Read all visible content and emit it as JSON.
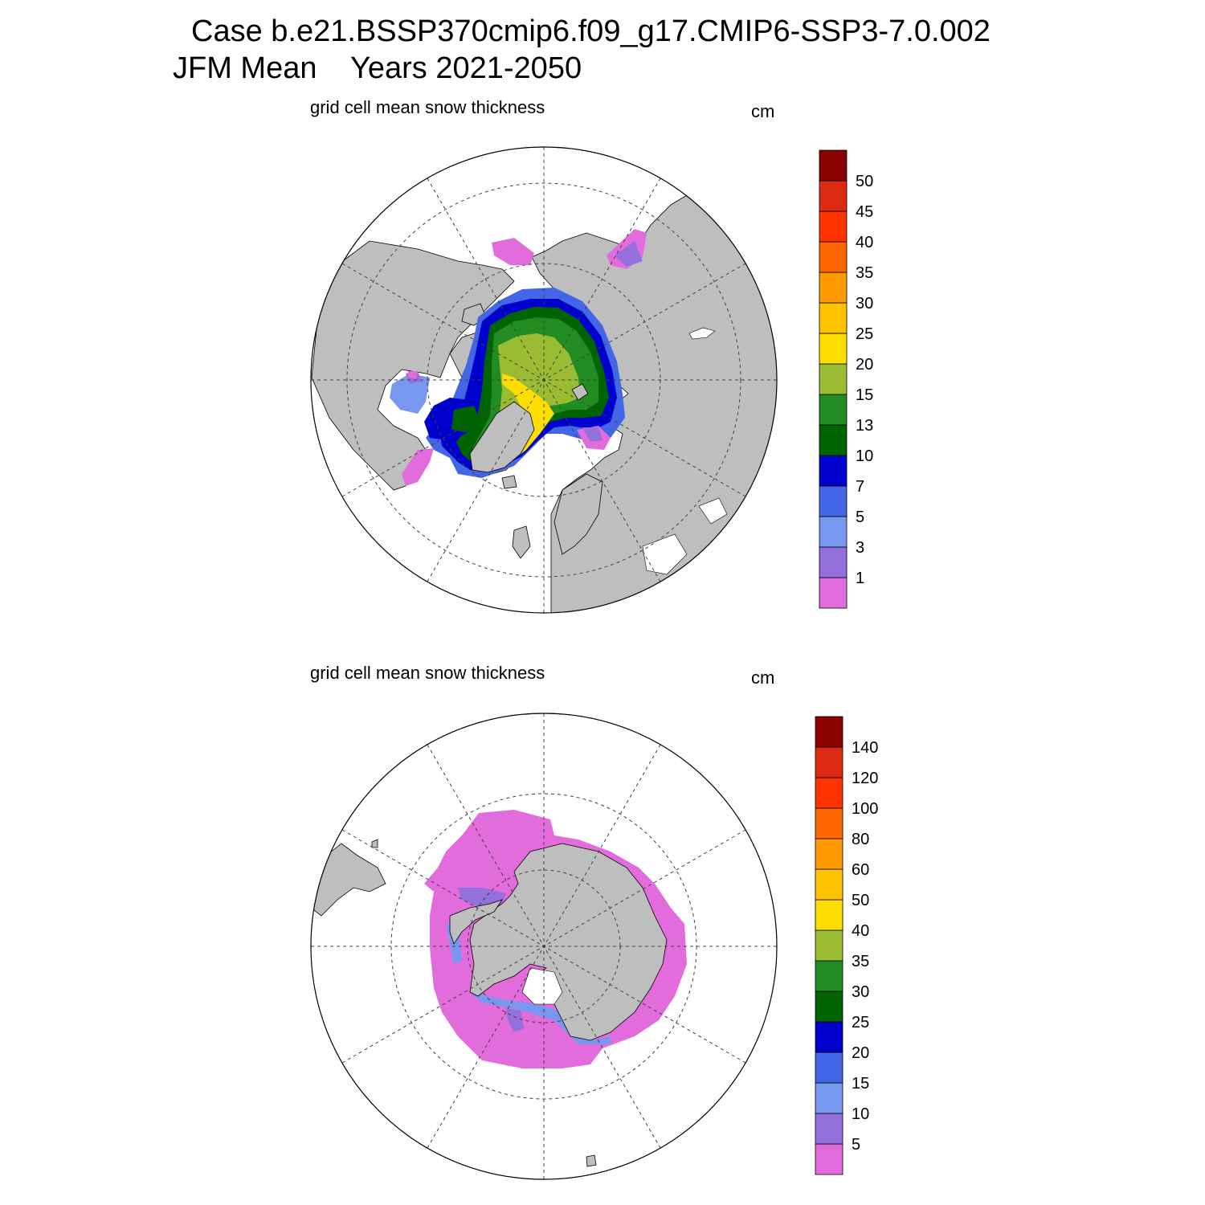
{
  "title": {
    "line1": "Case b.e21.BSSP370cmip6.f09_g17.CMIP6-SSP3-7.0.002",
    "line2": "JFM Mean    Years 2021-2050"
  },
  "colors": {
    "land": "#bebebe",
    "ocean": "#ffffff",
    "scale": [
      "#e36cdc",
      "#9370db",
      "#7898f0",
      "#4266e6",
      "#0000cd",
      "#006400",
      "#228b22",
      "#9abc32",
      "#ffdd00",
      "#ffc200",
      "#ff9900",
      "#ff6600",
      "#ff3300",
      "#dd2a12",
      "#8b0000"
    ]
  },
  "panels": [
    {
      "name": "arctic",
      "subtitle": "grid cell mean snow thickness",
      "unit": "cm",
      "colorbar_labels": [
        "1",
        "3",
        "5",
        "7",
        "10",
        "13",
        "15",
        "20",
        "25",
        "30",
        "35",
        "40",
        "45",
        "50"
      ]
    },
    {
      "name": "antarctic",
      "subtitle": "grid cell mean snow thickness",
      "unit": "cm",
      "colorbar_labels": [
        "5",
        "10",
        "15",
        "20",
        "25",
        "30",
        "35",
        "40",
        "50",
        "60",
        "80",
        "100",
        "120",
        "140"
      ]
    }
  ]
}
